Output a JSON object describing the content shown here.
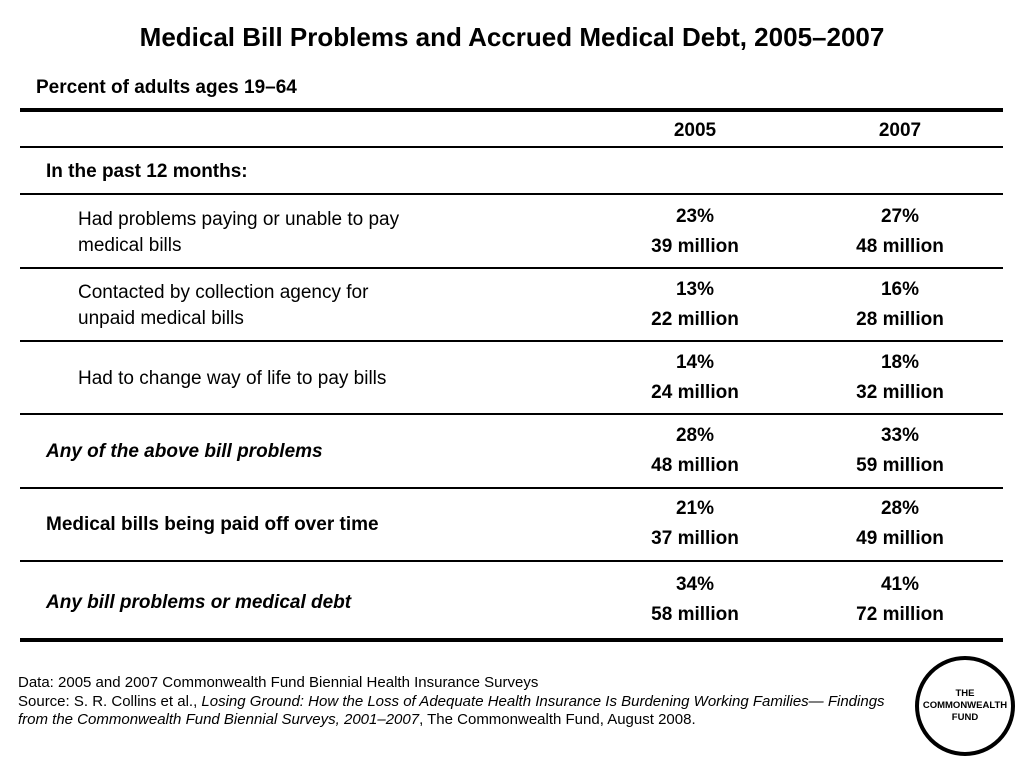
{
  "title": "Medical Bill Problems and Accrued Medical Debt, 2005–2007",
  "subtitle": "Percent of adults ages 19–64",
  "columns": [
    "2005",
    "2007"
  ],
  "section_label": "In the past 12 months:",
  "rows": [
    {
      "label": "Had problems paying or unable to pay medical bills",
      "v2005_pct": "23%",
      "v2005_num": "39 million",
      "v2007_pct": "27%",
      "v2007_num": "48 million"
    },
    {
      "label": "Contacted by collection agency for unpaid medical bills",
      "v2005_pct": "13%",
      "v2005_num": "22 million",
      "v2007_pct": "16%",
      "v2007_num": "28 million"
    },
    {
      "label": "Had to change way of life to pay bills",
      "v2005_pct": "14%",
      "v2005_num": "24 million",
      "v2007_pct": "18%",
      "v2007_num": "32 million"
    },
    {
      "label": "Any of the above bill problems",
      "v2005_pct": "28%",
      "v2005_num": "48 million",
      "v2007_pct": "33%",
      "v2007_num": "59 million"
    },
    {
      "label": "Medical bills being paid off over time",
      "v2005_pct": "21%",
      "v2005_num": "37 million",
      "v2007_pct": "28%",
      "v2007_num": "49 million"
    },
    {
      "label": "Any bill problems or medical debt",
      "v2005_pct": "34%",
      "v2005_num": "58 million",
      "v2007_pct": "41%",
      "v2007_num": "72 million"
    }
  ],
  "footer": {
    "data_line": "Data: 2005 and 2007 Commonwealth Fund Biennial Health Insurance Surveys",
    "source_prefix": "Source: S. R. Collins et al., ",
    "source_title": "Losing Ground: How the Loss of Adequate Health Insurance Is Burdening Working Families— Findings from the Commonwealth Fund Biennial Surveys, 2001–2007",
    "source_suffix": ", The Commonwealth Fund, August 2008."
  },
  "logo": {
    "line1": "THE",
    "line2": "COMMONWEALTH",
    "line3": "FUND"
  }
}
